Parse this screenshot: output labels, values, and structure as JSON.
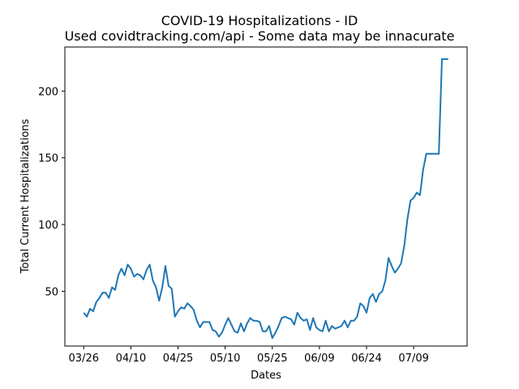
{
  "chart_data": {
    "type": "line",
    "title": "COVID-19 Hospitalizations - ID",
    "subtitle": "Used covidtracking.com/api - Some data may be innacurate",
    "xlabel": "Dates",
    "ylabel": "Total Current Hospitalizations",
    "x_start": "2020-03-26",
    "xlim": [
      "2020-03-20",
      "2020-07-26"
    ],
    "ylim": [
      9,
      233
    ],
    "x_ticks": [
      {
        "date": "2020-03-26",
        "label": "03/26"
      },
      {
        "date": "2020-04-10",
        "label": "04/10"
      },
      {
        "date": "2020-04-25",
        "label": "04/25"
      },
      {
        "date": "2020-05-10",
        "label": "05/10"
      },
      {
        "date": "2020-05-25",
        "label": "05/25"
      },
      {
        "date": "2020-06-09",
        "label": "06/09"
      },
      {
        "date": "2020-06-24",
        "label": "06/24"
      },
      {
        "date": "2020-07-09",
        "label": "07/09"
      }
    ],
    "y_ticks": [
      50,
      100,
      150,
      200
    ],
    "grid": false,
    "series": [
      {
        "color": "#1f77b4",
        "values": [
          34,
          31,
          37,
          35,
          42,
          45,
          49,
          49,
          45,
          53,
          51,
          62,
          67,
          62,
          70,
          67,
          61,
          63,
          62,
          59,
          66,
          70,
          58,
          53,
          43,
          53,
          69,
          54,
          52,
          31,
          35,
          38,
          37,
          41,
          39,
          36,
          28,
          23,
          27,
          27,
          27,
          21,
          20,
          16,
          19,
          25,
          30,
          25,
          20,
          19,
          26,
          20,
          26,
          30,
          28,
          28,
          27,
          20,
          20,
          24,
          15,
          19,
          24,
          30,
          31,
          30,
          29,
          25,
          34,
          30,
          28,
          29,
          21,
          30,
          23,
          21,
          20,
          28,
          20,
          24,
          22,
          23,
          24,
          28,
          23,
          28,
          28,
          31,
          41,
          39,
          34,
          45,
          48,
          42,
          48,
          50,
          58,
          75,
          69,
          64,
          67,
          71,
          84,
          104,
          118,
          120,
          124,
          122,
          141,
          153,
          153,
          153,
          153,
          153,
          224,
          224,
          224
        ]
      }
    ]
  }
}
